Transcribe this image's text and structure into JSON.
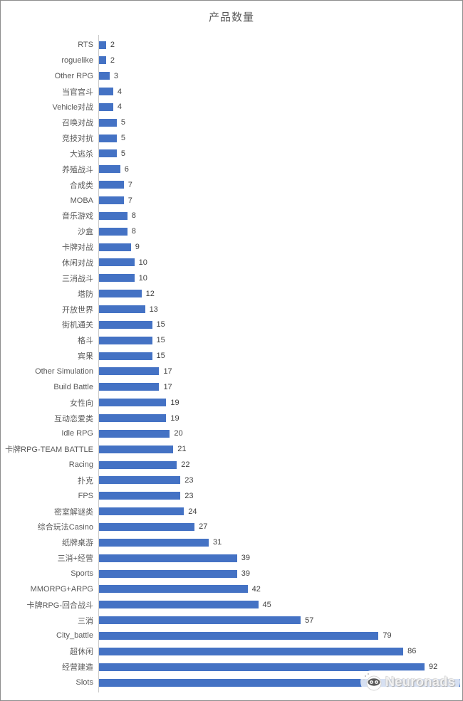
{
  "page": {
    "background": "#ffffff",
    "border_color": "#8c8c8c"
  },
  "chart_data": {
    "type": "bar",
    "orientation": "horizontal",
    "title": "产品数量",
    "xlabel": "",
    "ylabel": "",
    "legend": "none",
    "grid": "off",
    "xlim": [
      0,
      103
    ],
    "bar_color": "#4472C4",
    "axis_line_color": "#c9c9c9",
    "title_color": "#595959",
    "category_label_color": "#595959",
    "value_label_color": "#404040",
    "categories": [
      "RTS",
      "roguelike",
      "Other RPG",
      "当官宫斗",
      "Vehicle对战",
      "召唤对战",
      "竞技对抗",
      "大逃杀",
      "养殖战斗",
      "合成类",
      "MOBA",
      "音乐游戏",
      "沙盒",
      "卡牌对战",
      "休闲对战",
      "三消战斗",
      "塔防",
      "开放世界",
      "街机通关",
      "格斗",
      "宾果",
      "Other Simulation",
      "Build Battle",
      "女性向",
      "互动恋爱类",
      "Idle RPG",
      "卡牌RPG-TEAM BATTLE",
      "Racing",
      "扑克",
      "FPS",
      "密室解谜类",
      "综合玩法Casino",
      "纸牌桌游",
      "三消+经营",
      "Sports",
      "MMORPG+ARPG",
      "卡牌RPG-回合战斗",
      "三消",
      "City_battle",
      "超休闲",
      "经营建造",
      "Slots"
    ],
    "values": [
      2,
      2,
      3,
      4,
      4,
      5,
      5,
      5,
      6,
      7,
      7,
      8,
      8,
      9,
      10,
      10,
      12,
      13,
      15,
      15,
      15,
      17,
      17,
      19,
      19,
      20,
      21,
      22,
      23,
      23,
      24,
      27,
      31,
      39,
      39,
      42,
      45,
      57,
      79,
      86,
      92,
      102
    ],
    "value_labels": [
      "2",
      "2",
      "3",
      "4",
      "4",
      "5",
      "5",
      "5",
      "6",
      "7",
      "7",
      "8",
      "8",
      "9",
      "10",
      "10",
      "12",
      "13",
      "15",
      "15",
      "15",
      "17",
      "17",
      "19",
      "19",
      "20",
      "21",
      "22",
      "23",
      "23",
      "24",
      "27",
      "31",
      "39",
      "39",
      "42",
      "45",
      "57",
      "79",
      "86",
      "92",
      ""
    ],
    "note": "Slots value label not visible on screen (obscured by watermark); bar length ≈102 units estimated from pixels"
  },
  "watermark": {
    "text": "Neuronads"
  }
}
